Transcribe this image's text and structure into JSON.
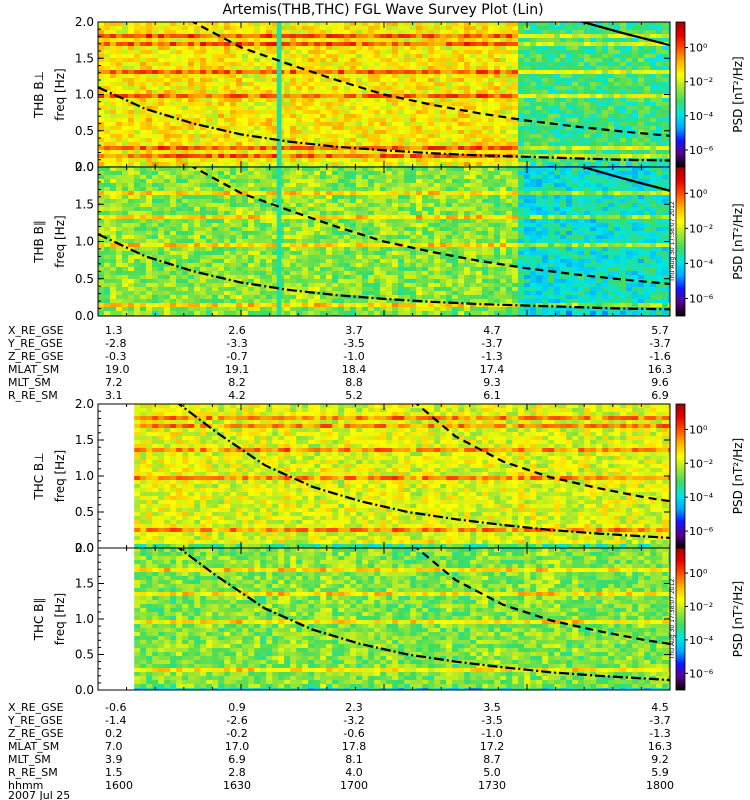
{
  "title": "Artemis(THB,THC) FGL Wave Survey Plot (Lin)",
  "colorbar": {
    "label": "PSD [nT²/Hz]",
    "tick_labels": [
      "10⁰",
      "10⁻²",
      "10⁻⁴",
      "10⁻⁶"
    ],
    "tick_exponents": [
      0,
      -2,
      -4,
      -6
    ],
    "range_log10": [
      -7,
      1.5
    ],
    "colors": [
      "#000000",
      "#5a008c",
      "#1414ff",
      "#00aaff",
      "#00e6e6",
      "#3cdc64",
      "#a0e632",
      "#ffff00",
      "#ffb400",
      "#ff5000",
      "#e60000",
      "#a00000"
    ]
  },
  "stamps": {
    "thb": "Thu Aug 30 17:38:07 2012",
    "thc": "Thu Aug 30 17:38:07 2012"
  },
  "ephem_label_ticks": [
    "X_RE_GSE",
    "Y_RE_GSE",
    "Z_RE_GSE",
    "MLAT_SM",
    "MLT_SM",
    "R_RE_SM"
  ],
  "ephem_thb": [
    [
      "1.3",
      "2.6",
      "3.7",
      "4.7",
      "5.7"
    ],
    [
      "-2.8",
      "-3.3",
      "-3.5",
      "-3.7",
      "-3.7"
    ],
    [
      "-0.3",
      "-0.7",
      "-1.0",
      "-1.3",
      "-1.6"
    ],
    [
      "19.0",
      "19.1",
      "18.4",
      "17.4",
      "16.3"
    ],
    [
      "7.2",
      "8.2",
      "8.8",
      "9.3",
      "9.6"
    ],
    [
      "3.1",
      "4.2",
      "5.2",
      "6.1",
      "6.9"
    ]
  ],
  "ephem_thc": [
    [
      "-0.6",
      "0.9",
      "2.3",
      "3.5",
      "4.5"
    ],
    [
      "-1.4",
      "-2.6",
      "-3.2",
      "-3.5",
      "-3.7"
    ],
    [
      "0.2",
      "-0.2",
      "-0.6",
      "-1.0",
      "-1.3"
    ],
    [
      "7.0",
      "17.0",
      "17.8",
      "17.2",
      "16.3"
    ],
    [
      "3.9",
      "6.9",
      "8.1",
      "8.7",
      "9.2"
    ],
    [
      "1.5",
      "2.8",
      "4.0",
      "5.0",
      "5.9"
    ]
  ],
  "time_axis": {
    "label": "hhmm",
    "ticks": [
      "1600",
      "1630",
      "1700",
      "1730",
      "1800"
    ],
    "date": "2007 Jul 25"
  },
  "chart_data": [
    {
      "type": "heatmap",
      "name": "thb_bperp",
      "title": "Artemis(THB,THC) FGL Wave Survey Plot (Lin)",
      "ylabel": "THB B⊥",
      "ylabel2": "freq [Hz]",
      "y_ticks": [
        "0.0",
        "0.5",
        "1.0",
        "1.5",
        "2.0"
      ],
      "ylim": [
        0,
        2.0
      ],
      "xlim_minutes": [
        0,
        120
      ],
      "x_ticks": [
        "1600",
        "1630",
        "1700",
        "1730",
        "1800"
      ],
      "data_start_minute": 0,
      "base_log10": -1.5,
      "lines": [
        {
          "name": "cyclotron_dash",
          "style": "dashed",
          "x": [
            0,
            10,
            20,
            30,
            40,
            50,
            60,
            70,
            80,
            90,
            100,
            110,
            120
          ],
          "y": [
            2.7,
            2.35,
            2.0,
            1.65,
            1.42,
            1.2,
            1.0,
            0.86,
            0.74,
            0.64,
            0.56,
            0.49,
            0.43
          ]
        },
        {
          "name": "cyclotron_dashdot",
          "style": "dashdot",
          "x": [
            0,
            10,
            20,
            30,
            40,
            50,
            60,
            70,
            80,
            90,
            100,
            110,
            120
          ],
          "y": [
            1.1,
            0.8,
            0.6,
            0.45,
            0.35,
            0.28,
            0.23,
            0.19,
            0.16,
            0.14,
            0.12,
            0.1,
            0.09
          ]
        },
        {
          "name": "cyclotron_solid",
          "style": "solid",
          "x": [
            99,
            110,
            120
          ],
          "y": [
            2.05,
            1.85,
            1.68
          ]
        }
      ],
      "vertical_bands": [
        {
          "x": [
            37.5,
            38.5
          ],
          "log10": -3.5
        }
      ],
      "regions": [
        {
          "x": [
            88,
            120
          ],
          "log10": -3.2
        }
      ],
      "harmonics_hz": [
        0.07,
        0.15,
        0.2,
        0.28,
        1.0,
        1.35,
        1.7,
        1.85
      ]
    },
    {
      "type": "heatmap",
      "name": "thb_bpar",
      "ylabel": "THB B∥",
      "ylabel2": "freq [Hz]",
      "y_ticks": [
        "0.0",
        "0.5",
        "1.0",
        "1.5",
        "2.0"
      ],
      "ylim": [
        0,
        2.0
      ],
      "xlim_minutes": [
        0,
        120
      ],
      "data_start_minute": 0,
      "base_log10": -2.5,
      "lines": [
        {
          "name": "cyclotron_dash",
          "style": "dashed",
          "x": [
            0,
            10,
            20,
            30,
            40,
            50,
            60,
            70,
            80,
            90,
            100,
            110,
            120
          ],
          "y": [
            2.7,
            2.35,
            2.0,
            1.65,
            1.42,
            1.2,
            1.0,
            0.86,
            0.74,
            0.64,
            0.56,
            0.49,
            0.43
          ]
        },
        {
          "name": "cyclotron_dashdot",
          "style": "dashdot",
          "x": [
            0,
            10,
            20,
            30,
            40,
            50,
            60,
            70,
            80,
            90,
            100,
            110,
            120
          ],
          "y": [
            1.1,
            0.8,
            0.6,
            0.45,
            0.35,
            0.28,
            0.23,
            0.19,
            0.16,
            0.14,
            0.12,
            0.1,
            0.09
          ]
        },
        {
          "name": "cyclotron_solid",
          "style": "solid",
          "x": [
            99,
            110,
            120
          ],
          "y": [
            2.05,
            1.85,
            1.68
          ]
        }
      ],
      "vertical_bands": [
        {
          "x": [
            37.5,
            38.5
          ],
          "log10": -3.5
        }
      ],
      "regions": [
        {
          "x": [
            88,
            120
          ],
          "log10": -3.8
        }
      ],
      "harmonics_hz": [
        0.07,
        0.15,
        1.0,
        1.35,
        1.7
      ]
    },
    {
      "type": "heatmap",
      "name": "thc_bperp",
      "ylabel": "THC B⊥",
      "ylabel2": "freq [Hz]",
      "y_ticks": [
        "0.0",
        "0.5",
        "1.0",
        "1.5",
        "2.0"
      ],
      "ylim": [
        0,
        2.0
      ],
      "xlim_minutes": [
        0,
        120
      ],
      "data_start_minute": 7.6,
      "base_log10": -1.8,
      "lines": [
        {
          "name": "cyclotron_dash",
          "style": "dashed",
          "x": [
            66,
            75,
            85,
            95,
            105,
            115,
            120
          ],
          "y": [
            2.05,
            1.55,
            1.2,
            0.98,
            0.83,
            0.7,
            0.65
          ]
        },
        {
          "name": "cyclotron_dashdot",
          "style": "dashdot",
          "x": [
            16,
            25,
            35,
            45,
            55,
            65,
            75,
            85,
            95,
            105,
            115,
            120
          ],
          "y": [
            2.05,
            1.6,
            1.15,
            0.85,
            0.65,
            0.5,
            0.4,
            0.32,
            0.25,
            0.2,
            0.16,
            0.14
          ]
        }
      ],
      "vertical_bands": [],
      "regions": [],
      "harmonics_hz": [
        0.1,
        0.3,
        1.0,
        1.4,
        1.7,
        1.85
      ]
    },
    {
      "type": "heatmap",
      "name": "thc_bpar",
      "ylabel": "THC B∥",
      "ylabel2": "freq [Hz]",
      "y_ticks": [
        "0.0",
        "0.5",
        "1.0",
        "1.5",
        "2.0"
      ],
      "ylim": [
        0,
        2.0
      ],
      "xlim_minutes": [
        0,
        120
      ],
      "data_start_minute": 7.6,
      "base_log10": -2.6,
      "lines": [
        {
          "name": "cyclotron_dash",
          "style": "dashed",
          "x": [
            66,
            75,
            85,
            95,
            105,
            115,
            120
          ],
          "y": [
            2.05,
            1.55,
            1.2,
            0.98,
            0.83,
            0.7,
            0.65
          ]
        },
        {
          "name": "cyclotron_dashdot",
          "style": "dashdot",
          "x": [
            16,
            25,
            35,
            45,
            55,
            65,
            75,
            85,
            95,
            105,
            115,
            120
          ],
          "y": [
            2.05,
            1.6,
            1.15,
            0.85,
            0.65,
            0.5,
            0.4,
            0.32,
            0.25,
            0.2,
            0.16,
            0.14
          ]
        }
      ],
      "vertical_bands": [],
      "regions": [],
      "harmonics_hz": [
        0.1,
        0.3,
        1.0,
        1.4,
        1.7
      ]
    }
  ]
}
